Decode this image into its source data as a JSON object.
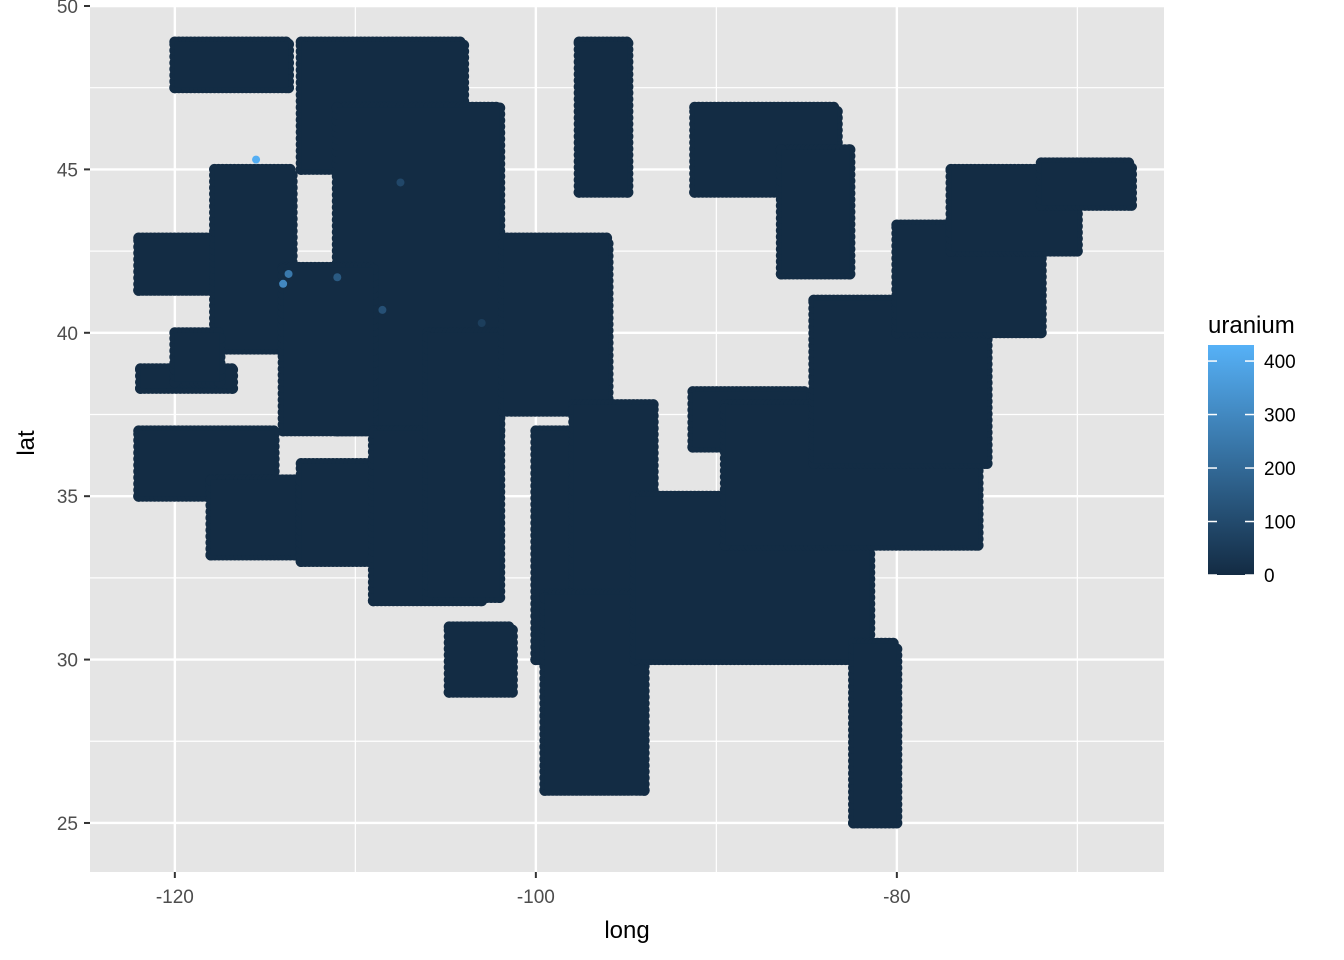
{
  "chart_data": {
    "type": "scatter",
    "title": "",
    "xlabel": "long",
    "ylabel": "lat",
    "xlim": [
      -124.7,
      -65.2
    ],
    "ylim": [
      23.5,
      50.0
    ],
    "x_ticks": [
      -120,
      -100,
      -80
    ],
    "x_tick_labels": [
      "-120",
      "-100",
      "-80"
    ],
    "y_ticks": [
      25,
      30,
      35,
      40,
      45,
      50
    ],
    "y_tick_labels": [
      "25",
      "30",
      "35",
      "40",
      "45",
      "50"
    ],
    "grid": true,
    "panel_background": "#e5e5e5",
    "grid_color": "#ffffff",
    "legend": {
      "title": "uranium",
      "placement": "right",
      "type": "colorbar",
      "min": 0,
      "max": 430,
      "breaks": [
        0,
        100,
        200,
        300,
        400
      ],
      "break_labels": [
        "0",
        "100",
        "200",
        "300",
        "400"
      ],
      "low_color": "#132b43",
      "high_color": "#56b1f7"
    },
    "regions": [
      {
        "long": [
          -120.0,
          -113.7
        ],
        "lat": [
          47.5,
          48.9
        ]
      },
      {
        "long": [
          -113.0,
          -104.0
        ],
        "lat": [
          45.0,
          48.9
        ]
      },
      {
        "long": [
          -122.0,
          -117.0
        ],
        "lat": [
          41.3,
          42.9
        ]
      },
      {
        "long": [
          -117.8,
          -113.5
        ],
        "lat": [
          39.5,
          45.0
        ]
      },
      {
        "long": [
          -111.0,
          -102.0
        ],
        "lat": [
          37.0,
          46.9
        ]
      },
      {
        "long": [
          -114.0,
          -109.0
        ],
        "lat": [
          37.0,
          42.0
        ]
      },
      {
        "long": [
          -121.9,
          -116.8
        ],
        "lat": [
          38.3,
          38.9
        ]
      },
      {
        "long": [
          -120.0,
          -117.5
        ],
        "lat": [
          38.5,
          40.0
        ]
      },
      {
        "long": [
          -122.0,
          -114.5
        ],
        "lat": [
          35.0,
          37.0
        ]
      },
      {
        "long": [
          -118.0,
          -113.3
        ],
        "lat": [
          33.2,
          35.5
        ]
      },
      {
        "long": [
          -113.0,
          -109.0
        ],
        "lat": [
          33.0,
          36.0
        ]
      },
      {
        "long": [
          -109.0,
          -103.0
        ],
        "lat": [
          31.8,
          37.0
        ]
      },
      {
        "long": [
          -106.0,
          -102.0
        ],
        "lat": [
          31.9,
          40.0
        ]
      },
      {
        "long": [
          -101.8,
          -96.0
        ],
        "lat": [
          37.6,
          42.9
        ]
      },
      {
        "long": [
          -100.0,
          -96.0
        ],
        "lat": [
          30.0,
          37.0
        ]
      },
      {
        "long": [
          -97.9,
          -93.5
        ],
        "lat": [
          31.0,
          37.8
        ]
      },
      {
        "long": [
          -99.5,
          -94.0
        ],
        "lat": [
          26.0,
          32.0
        ]
      },
      {
        "long": [
          -97.6,
          -94.9
        ],
        "lat": [
          44.3,
          48.9
        ]
      },
      {
        "long": [
          -91.2,
          -83.3
        ],
        "lat": [
          44.3,
          46.9
        ]
      },
      {
        "long": [
          -86.4,
          -82.6
        ],
        "lat": [
          41.8,
          45.6
        ]
      },
      {
        "long": [
          -91.3,
          -85.0
        ],
        "lat": [
          36.5,
          38.2
        ]
      },
      {
        "long": [
          -94.5,
          -81.5
        ],
        "lat": [
          30.0,
          35.0
        ]
      },
      {
        "long": [
          -89.5,
          -75.5
        ],
        "lat": [
          33.5,
          37.8
        ]
      },
      {
        "long": [
          -84.6,
          -75.0
        ],
        "lat": [
          36.0,
          41.0
        ]
      },
      {
        "long": [
          -82.4,
          -80.0
        ],
        "lat": [
          25.0,
          30.5
        ]
      },
      {
        "long": [
          -80.0,
          -72.0
        ],
        "lat": [
          40.0,
          43.3
        ]
      },
      {
        "long": [
          -77.0,
          -70.0
        ],
        "lat": [
          42.5,
          45.0
        ]
      },
      {
        "long": [
          -72.0,
          -67.0
        ],
        "lat": [
          43.9,
          45.2
        ]
      },
      {
        "long": [
          -104.8,
          -101.3
        ],
        "lat": [
          29.0,
          31.0
        ]
      }
    ],
    "elevated_points": [
      {
        "long": -115.5,
        "lat": 45.3,
        "uranium": 420
      },
      {
        "long": -114.0,
        "lat": 41.5,
        "uranium": 300
      },
      {
        "long": -113.7,
        "lat": 41.8,
        "uranium": 250
      },
      {
        "long": -111.0,
        "lat": 41.7,
        "uranium": 150
      },
      {
        "long": -108.5,
        "lat": 40.7,
        "uranium": 120
      },
      {
        "long": -107.5,
        "lat": 44.6,
        "uranium": 90
      },
      {
        "long": -103.0,
        "lat": 40.3,
        "uranium": 60
      }
    ]
  }
}
